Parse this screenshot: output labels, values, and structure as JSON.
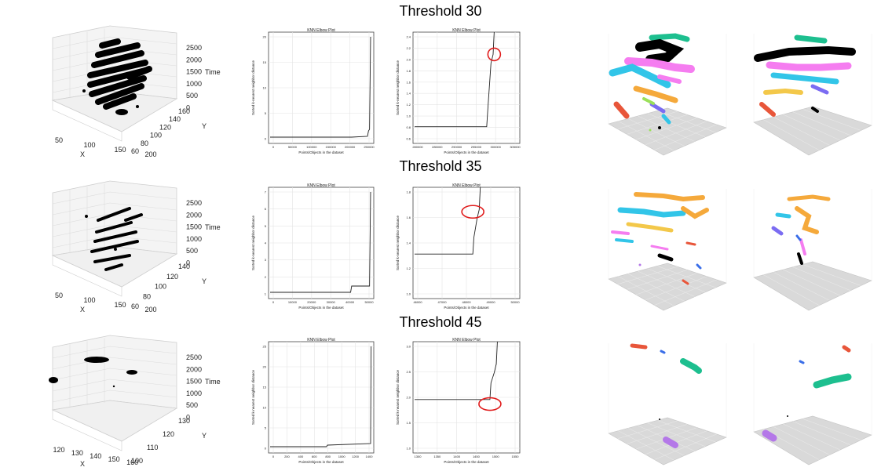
{
  "rows": [
    {
      "title": "Threshold 30",
      "scatter": {
        "z_ticks": [
          "2500",
          "2000",
          "1500",
          "1000",
          "500",
          "0"
        ],
        "x_ticks": [
          "50",
          "100",
          "150",
          "200"
        ],
        "y_ticks": [
          "160",
          "140",
          "120",
          "100",
          "80",
          "60"
        ],
        "x_label": "X",
        "y_label": "Y",
        "z_label": "Time"
      },
      "knn_full": {
        "title": "KNN Elbow Plot",
        "x_ticks": [
          "0",
          "50000",
          "100000",
          "150000",
          "200000",
          "250000"
        ],
        "y_ticks": [
          "20",
          "15",
          "10",
          "5",
          "0"
        ],
        "xlabel": "Points/Objects in the dataset",
        "ylabel": "Sorted k-nearest neighbor distance"
      },
      "knn_zoom": {
        "title": "KNN Elbow Plot",
        "x_ticks": [
          "280000",
          "285000",
          "290000",
          "295000",
          "300000",
          "305000"
        ],
        "y_ticks": [
          "2.4",
          "2.2",
          "2.0",
          "1.8",
          "1.6",
          "1.4",
          "1.2",
          "1.0",
          "0.8",
          "0.6"
        ],
        "xlabel": "Points/Objects in the dataset",
        "ylabel": "Sorted k-nearest neighbor distance"
      }
    },
    {
      "title": "Threshold 35",
      "scatter": {
        "z_ticks": [
          "2500",
          "2000",
          "1500",
          "1000",
          "500",
          "0"
        ],
        "x_ticks": [
          "50",
          "100",
          "150",
          "200"
        ],
        "y_ticks": [
          "140",
          "120",
          "100",
          "80",
          "60"
        ],
        "x_label": "X",
        "y_label": "Y",
        "z_label": "Time"
      },
      "knn_full": {
        "title": "KNN Elbow Plot",
        "x_ticks": [
          "0",
          "10000",
          "20000",
          "30000",
          "40000",
          "50000"
        ],
        "y_ticks": [
          "7",
          "6",
          "5",
          "4",
          "3",
          "2",
          "1"
        ],
        "xlabel": "Points/Objects in the dataset",
        "ylabel": "Sorted k-nearest neighbor distance"
      },
      "knn_zoom": {
        "title": "KNN Elbow Plot",
        "x_ticks": [
          "46000",
          "47000",
          "48000",
          "49000",
          "50000"
        ],
        "y_ticks": [
          "1.8",
          "1.6",
          "1.4",
          "1.2",
          "1.0"
        ],
        "xlabel": "Points/Objects in the dataset",
        "ylabel": "Sorted k-nearest neighbor distance"
      }
    },
    {
      "title": "Threshold 45",
      "scatter": {
        "z_ticks": [
          "2500",
          "2000",
          "1500",
          "1000",
          "500",
          "0"
        ],
        "x_ticks": [
          "120",
          "130",
          "140",
          "150",
          "160"
        ],
        "y_ticks": [
          "130",
          "120",
          "110",
          "100"
        ],
        "x_label": "X",
        "y_label": "Y",
        "z_label": "Time"
      },
      "knn_full": {
        "title": "KNN Elbow Plot",
        "x_ticks": [
          "0",
          "200",
          "400",
          "600",
          "800",
          "1000",
          "1200",
          "1400"
        ],
        "y_ticks": [
          "25",
          "20",
          "15",
          "10",
          "5",
          "0"
        ],
        "xlabel": "Points/Objects in the dataset",
        "ylabel": "Sorted k-nearest neighbor distance"
      },
      "knn_zoom": {
        "title": "KNN Elbow Plot",
        "x_ticks": [
          "1300",
          "1350",
          "1400",
          "1450",
          "1500",
          "1550"
        ],
        "y_ticks": [
          "3.0",
          "2.5",
          "2.0",
          "1.5",
          "1.0"
        ],
        "xlabel": "Points/Objects in the dataset",
        "ylabel": "Sorted k-nearest neighbor distance"
      }
    }
  ],
  "cluster_colors": [
    "#000000",
    "#1dbf8f",
    "#f57df0",
    "#32c5e8",
    "#f5a93b",
    "#e8563a",
    "#7b6cf2",
    "#9be05a",
    "#f3c84a",
    "#3a6ee8",
    "#b478e8"
  ]
}
